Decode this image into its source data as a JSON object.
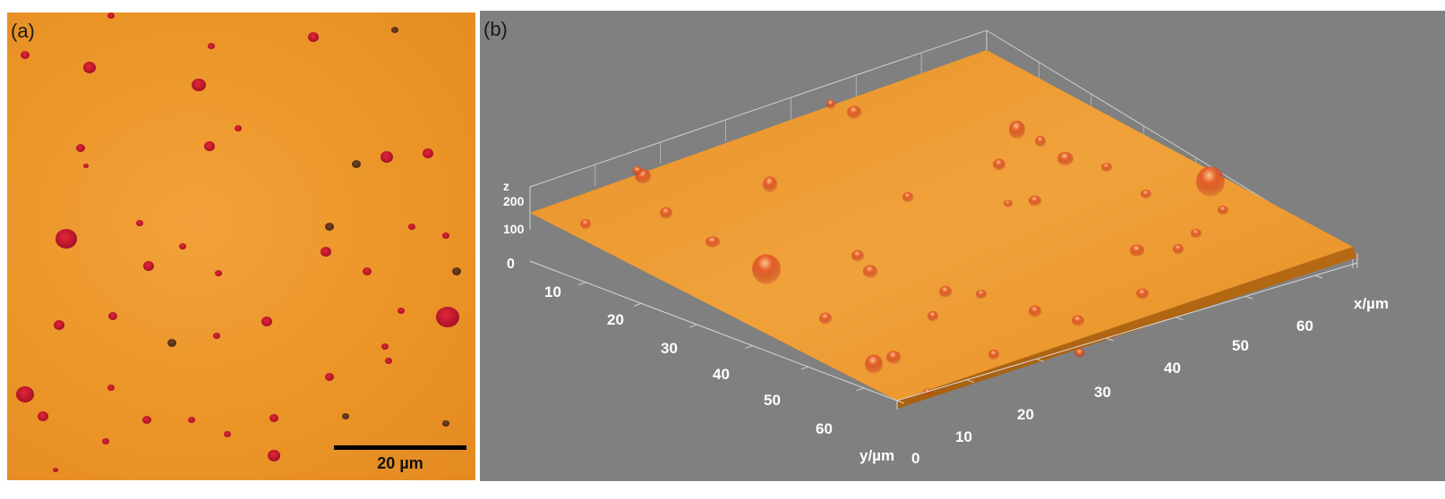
{
  "panel_a": {
    "label": "(a)",
    "scale_label": "20 µm"
  },
  "panel_b": {
    "label": "(b)",
    "z_axis": {
      "label": "z",
      "ticks": [
        "200",
        "100",
        "0"
      ]
    },
    "y_axis": {
      "label": "y/µm",
      "ticks": [
        "10",
        "20",
        "30",
        "40",
        "50",
        "60"
      ]
    },
    "x_axis": {
      "label": "x/µm",
      "ticks": [
        "0",
        "10",
        "20",
        "30",
        "40",
        "50",
        "60"
      ]
    }
  },
  "colors": {
    "surface": "#ec9a2e",
    "particle": "#c81a2e",
    "background_b": "#808080"
  }
}
